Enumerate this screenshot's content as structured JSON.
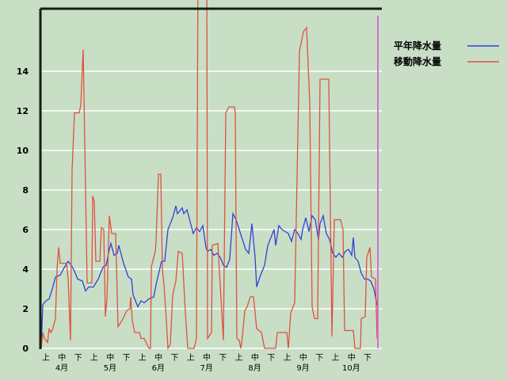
{
  "chart_data": {
    "type": "line",
    "title": "",
    "xlabel": "",
    "ylabel": "",
    "ylim": [
      0,
      17.2
    ],
    "xlim": [
      0,
      214
    ],
    "grid": true,
    "legend_position": "top-right",
    "yticks": [
      0,
      2,
      4,
      6,
      8,
      10,
      12,
      14
    ],
    "dekad_labels": [
      "上",
      "中",
      "下",
      "上",
      "中",
      "下",
      "上",
      "中",
      "下",
      "上",
      "中",
      "下",
      "上",
      "中",
      "下",
      "上",
      "中",
      "下",
      "上",
      "中",
      "下"
    ],
    "month_labels": [
      "4月",
      "5月",
      "6月",
      "7月",
      "8月",
      "9月",
      "10月"
    ],
    "marker_day": 212.5,
    "series": [
      {
        "name": "平年降水量",
        "color": "#3040d8",
        "points": [
          [
            0,
            0
          ],
          [
            1,
            2.2
          ],
          [
            3,
            2.4
          ],
          [
            5,
            2.5
          ],
          [
            7,
            3
          ],
          [
            9,
            3.6
          ],
          [
            12,
            3.7
          ],
          [
            14,
            4.0
          ],
          [
            17,
            4.4
          ],
          [
            19,
            4.2
          ],
          [
            21,
            3.9
          ],
          [
            23,
            3.5
          ],
          [
            26,
            3.4
          ],
          [
            28,
            2.9
          ],
          [
            30,
            3.1
          ],
          [
            33,
            3.1
          ],
          [
            36,
            3.5
          ],
          [
            39,
            4.1
          ],
          [
            41,
            4.2
          ],
          [
            43,
            5.0
          ],
          [
            44,
            5.3
          ],
          [
            46,
            4.7
          ],
          [
            48,
            4.8
          ],
          [
            49,
            5.2
          ],
          [
            52,
            4.3
          ],
          [
            55,
            3.6
          ],
          [
            57,
            3.5
          ],
          [
            58,
            2.7
          ],
          [
            61,
            2.1
          ],
          [
            63,
            2.4
          ],
          [
            65,
            2.3
          ],
          [
            68,
            2.5
          ],
          [
            71,
            2.6
          ],
          [
            73,
            3.4
          ],
          [
            76,
            4.4
          ],
          [
            78,
            4.4
          ],
          [
            80,
            6.0
          ],
          [
            83,
            6.6
          ],
          [
            85,
            7.2
          ],
          [
            86,
            6.8
          ],
          [
            89,
            7.1
          ],
          [
            90,
            6.8
          ],
          [
            92,
            7.0
          ],
          [
            94,
            6.4
          ],
          [
            96,
            5.8
          ],
          [
            98,
            6.1
          ],
          [
            100,
            5.9
          ],
          [
            102,
            6.2
          ],
          [
            104,
            5.1
          ],
          [
            105,
            4.9
          ],
          [
            107,
            5.0
          ],
          [
            109,
            4.7
          ],
          [
            111,
            4.8
          ],
          [
            113,
            4.6
          ],
          [
            115,
            4.2
          ],
          [
            117,
            4.1
          ],
          [
            119,
            4.5
          ],
          [
            121,
            6.8
          ],
          [
            123,
            6.5
          ],
          [
            125,
            6.0
          ],
          [
            127,
            5.5
          ],
          [
            129,
            5.0
          ],
          [
            131,
            4.8
          ],
          [
            133,
            6.3
          ],
          [
            135,
            4.6
          ],
          [
            136,
            3.1
          ],
          [
            138,
            3.6
          ],
          [
            141,
            4.2
          ],
          [
            143,
            5.2
          ],
          [
            145,
            5.6
          ],
          [
            147,
            6.0
          ],
          [
            148,
            5.2
          ],
          [
            150,
            6.2
          ],
          [
            152,
            6.0
          ],
          [
            154,
            5.9
          ],
          [
            156,
            5.8
          ],
          [
            158,
            5.4
          ],
          [
            160,
            6.0
          ],
          [
            162,
            5.8
          ],
          [
            164,
            5.5
          ],
          [
            165,
            6.0
          ],
          [
            167,
            6.6
          ],
          [
            169,
            5.9
          ],
          [
            171,
            6.7
          ],
          [
            173,
            6.5
          ],
          [
            175,
            5.5
          ],
          [
            176,
            6.3
          ],
          [
            178,
            6.7
          ],
          [
            180,
            5.8
          ],
          [
            182,
            5.5
          ],
          [
            184,
            4.8
          ],
          [
            186,
            4.6
          ],
          [
            188,
            4.8
          ],
          [
            190,
            4.6
          ],
          [
            192,
            4.9
          ],
          [
            194,
            5.0
          ],
          [
            196,
            4.7
          ],
          [
            197,
            5.6
          ],
          [
            198,
            4.6
          ],
          [
            200,
            4.4
          ],
          [
            202,
            3.8
          ],
          [
            204,
            3.5
          ],
          [
            206,
            3.5
          ],
          [
            208,
            3.4
          ],
          [
            210,
            3.0
          ],
          [
            212,
            2.2
          ],
          [
            213,
            2.1
          ]
        ]
      },
      {
        "name": "移動降水量",
        "color": "#e05040",
        "points": [
          [
            0,
            0
          ],
          [
            1,
            0.8
          ],
          [
            2,
            0.5
          ],
          [
            4,
            0.3
          ],
          [
            5,
            1.0
          ],
          [
            6,
            0.8
          ],
          [
            7,
            0.9
          ],
          [
            9,
            1.5
          ],
          [
            10,
            4.0
          ],
          [
            11,
            5.1
          ],
          [
            12,
            4.3
          ],
          [
            16,
            4.3
          ],
          [
            17,
            3.5
          ],
          [
            18.5,
            0.4
          ],
          [
            19.5,
            9.0
          ],
          [
            21,
            11.9
          ],
          [
            24,
            11.9
          ],
          [
            25,
            12.3
          ],
          [
            26.5,
            15.1
          ],
          [
            29,
            3.3
          ],
          [
            32,
            3.3
          ],
          [
            32.5,
            7.7
          ],
          [
            33.5,
            7.4
          ],
          [
            34.5,
            4.4
          ],
          [
            37,
            4.4
          ],
          [
            38,
            6.1
          ],
          [
            39.5,
            6.0
          ],
          [
            40.5,
            1.6
          ],
          [
            41.5,
            2.5
          ],
          [
            43,
            6.7
          ],
          [
            44.5,
            5.8
          ],
          [
            47,
            5.8
          ],
          [
            48.5,
            1.1
          ],
          [
            51,
            1.4
          ],
          [
            54,
            1.9
          ],
          [
            56,
            2.0
          ],
          [
            56.5,
            2.6
          ],
          [
            57.5,
            1.4
          ],
          [
            59,
            0.8
          ],
          [
            62,
            0.8
          ],
          [
            63,
            0.5
          ],
          [
            65,
            0.5
          ],
          [
            68,
            0
          ],
          [
            69,
            0
          ],
          [
            69.5,
            4.1
          ],
          [
            72,
            4.9
          ],
          [
            72.5,
            5.4
          ],
          [
            74,
            8.8
          ],
          [
            75.5,
            8.8
          ],
          [
            76.5,
            4.0
          ],
          [
            77.5,
            3.2
          ],
          [
            79,
            1.4
          ],
          [
            80,
            0
          ],
          [
            81.5,
            0.2
          ],
          [
            83,
            2.7
          ],
          [
            85,
            3.4
          ],
          [
            86.5,
            4.9
          ],
          [
            89,
            4.8
          ],
          [
            91,
            1.8
          ],
          [
            92.5,
            0
          ],
          [
            96.5,
            0
          ],
          [
            98,
            0.5
          ],
          [
            99,
            20
          ],
          [
            104.5,
            20
          ],
          [
            105,
            0.5
          ],
          [
            107.5,
            0.8
          ],
          [
            108,
            5.2
          ],
          [
            111.5,
            5.3
          ],
          [
            115,
            0.4
          ],
          [
            116.5,
            11.9
          ],
          [
            118.5,
            12.2
          ],
          [
            122,
            12.2
          ],
          [
            122.5,
            11.8
          ],
          [
            123.5,
            0.5
          ],
          [
            125,
            0.4
          ],
          [
            126,
            0
          ],
          [
            127,
            0.6
          ],
          [
            128.5,
            1.9
          ],
          [
            130,
            2.1
          ],
          [
            132,
            2.6
          ],
          [
            134,
            2.6
          ],
          [
            136,
            1.0
          ],
          [
            139,
            0.8
          ],
          [
            141,
            0
          ],
          [
            148,
            0
          ],
          [
            149,
            0.8
          ],
          [
            155,
            0.8
          ],
          [
            156,
            0
          ],
          [
            157.5,
            1.8
          ],
          [
            160,
            2.3
          ],
          [
            163,
            15.0
          ],
          [
            165.5,
            16.0
          ],
          [
            167.5,
            16.2
          ],
          [
            169.5,
            12.4
          ],
          [
            171,
            2.1
          ],
          [
            172.5,
            1.5
          ],
          [
            174.5,
            1.5
          ],
          [
            176,
            13.6
          ],
          [
            181.5,
            13.6
          ],
          [
            183.5,
            0.6
          ],
          [
            185,
            6.5
          ],
          [
            189,
            6.5
          ],
          [
            190.5,
            6.0
          ],
          [
            191.5,
            0.9
          ],
          [
            197,
            0.9
          ],
          [
            198,
            0
          ],
          [
            201.5,
            0
          ],
          [
            202,
            1.5
          ],
          [
            204.5,
            1.6
          ],
          [
            205.5,
            4.6
          ],
          [
            207.5,
            5.1
          ],
          [
            208.5,
            3.6
          ],
          [
            211,
            3.5
          ],
          [
            212,
            0.5
          ]
        ]
      }
    ]
  }
}
